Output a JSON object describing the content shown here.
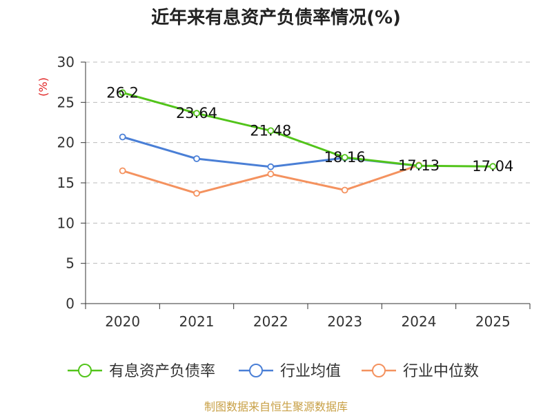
{
  "title": "近年来有息资产负债率情况(%)",
  "source": "制图数据来自恒生聚源数据库",
  "colors": {
    "grid": "#bbbbbb",
    "axis": "#333333"
  },
  "chart_data": {
    "type": "line",
    "title": "近年来有息资产负债率情况(%)",
    "ylabel": "(%)",
    "xlabel": "",
    "ylim": [
      0,
      30
    ],
    "yticks": [
      0,
      5,
      10,
      15,
      20,
      25,
      30
    ],
    "categories": [
      "2020",
      "2021",
      "2022",
      "2023",
      "2024",
      "2025"
    ],
    "grid": "horizontal-dashed",
    "legend": "bottom",
    "series": [
      {
        "name": "有息资产负债率",
        "color": "#52c41a",
        "values": [
          26.2,
          23.64,
          21.48,
          18.16,
          17.13,
          17.04
        ],
        "labels": [
          "26.2",
          "23.64",
          "21.48",
          "18.16",
          "17.13",
          "17.04"
        ],
        "show_labels": true
      },
      {
        "name": "行业均值",
        "color": "#4a7fd6",
        "values": [
          20.7,
          18.0,
          17.0,
          18.1,
          17.1,
          null
        ],
        "show_labels": false
      },
      {
        "name": "行业中位数",
        "color": "#f4925f",
        "values": [
          16.5,
          13.7,
          16.1,
          14.1,
          17.2,
          null
        ],
        "show_labels": false
      }
    ]
  }
}
